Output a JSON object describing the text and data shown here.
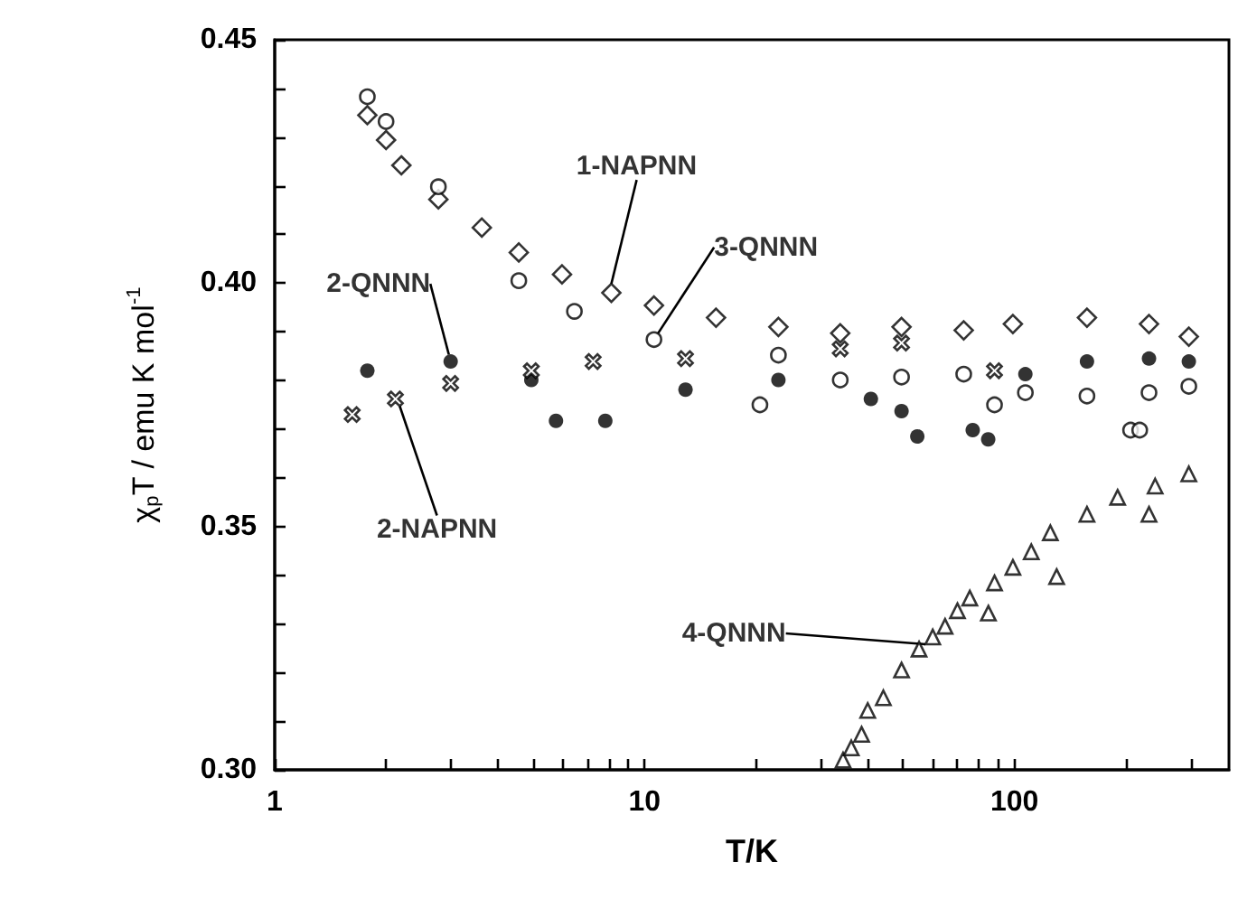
{
  "chart_data": {
    "type": "scatter",
    "xlabel": "T/K",
    "ylabel": "χ$_{p}$T / emu K mol$^{-1}$",
    "log": "x",
    "grid": false,
    "xlim": [
      1,
      380
    ],
    "ylim": [
      0.3,
      0.45
    ],
    "xticks": [
      1,
      {
        "value": 2,
        "label": null
      },
      {
        "value": 3,
        "label": null
      },
      {
        "value": 4,
        "label": null
      },
      {
        "value": 5,
        "label": null
      },
      {
        "value": 6,
        "label": null
      },
      {
        "value": 7,
        "label": null
      },
      {
        "value": 8,
        "label": null
      },
      {
        "value": 9,
        "label": null
      },
      10,
      {
        "value": 20,
        "label": null
      },
      {
        "value": 30,
        "label": null
      },
      {
        "value": 40,
        "label": null
      },
      {
        "value": 50,
        "label": null
      },
      {
        "value": 60,
        "label": null
      },
      {
        "value": 70,
        "label": null
      },
      {
        "value": 80,
        "label": null
      },
      {
        "value": 90,
        "label": null
      },
      100,
      {
        "value": 200,
        "label": null
      },
      {
        "value": 300,
        "label": null
      }
    ],
    "yticks": [
      {
        "value": 0.3,
        "label": "0.30"
      },
      {
        "value": 0.31,
        "label": null
      },
      {
        "value": 0.32,
        "label": null
      },
      {
        "value": 0.33,
        "label": null
      },
      {
        "value": 0.34,
        "label": null
      },
      0.35,
      {
        "value": 0.36,
        "label": null
      },
      {
        "value": 0.37,
        "label": null
      },
      {
        "value": 0.38,
        "label": null
      },
      {
        "value": 0.39,
        "label": null
      },
      {
        "value": 0.4,
        "label": "0.40"
      },
      {
        "value": 0.41,
        "label": null
      },
      {
        "value": 0.42,
        "label": null
      },
      {
        "value": 0.43,
        "label": null
      },
      {
        "value": 0.44,
        "label": null
      },
      0.45
    ],
    "series": [
      {
        "name": "1-NAPNN",
        "color": "#000000",
        "marker": "diamond",
        "x": [
          1.78,
          2.0,
          2.2,
          2.77,
          3.63,
          4.57,
          5.98,
          8.13,
          10.6,
          15.6,
          23.0,
          33.8,
          49.5,
          72.9,
          99,
          157,
          231,
          296
        ],
        "values": [
          0.4345,
          0.4294,
          0.4242,
          0.4172,
          0.4114,
          0.4063,
          0.4018,
          0.398,
          0.3954,
          0.3929,
          0.391,
          0.3897,
          0.391,
          0.3903,
          0.3916,
          0.3929,
          0.3916,
          0.389
        ]
      },
      {
        "name": "3-QNNN",
        "color": "#000000",
        "marker": "circle",
        "x": [
          1.78,
          2.0,
          2.77,
          4.57,
          6.46,
          10.6,
          20.5,
          23.0,
          33.8,
          49.5,
          72.9,
          88.3,
          107,
          157,
          206,
          218,
          231,
          296
        ],
        "values": [
          0.4383,
          0.4332,
          0.4198,
          0.4005,
          0.3942,
          0.3884,
          0.375,
          0.3852,
          0.3801,
          0.3807,
          0.3813,
          0.375,
          0.3775,
          0.3768,
          0.3698,
          0.3698,
          0.3775,
          0.3788
        ]
      },
      {
        "name": "2-QNNN",
        "color": "#000000",
        "marker": "circle",
        "x": [
          1.78,
          2.99,
          4.94,
          5.76,
          7.83,
          12.9,
          23.0,
          40.9,
          49.5,
          54.6,
          77.1,
          84.9,
          107,
          157,
          231,
          296
        ],
        "values": [
          0.382,
          0.3839,
          0.3801,
          0.3717,
          0.3717,
          0.3781,
          0.3801,
          0.3762,
          0.3737,
          0.3685,
          0.3698,
          0.3679,
          0.3813,
          0.3839,
          0.3845,
          0.3839
        ]
      },
      {
        "name": "2-NAPNN",
        "color": "#000000",
        "marker": "cross",
        "x": [
          1.62,
          2.12,
          2.99,
          4.94,
          7.26,
          12.9,
          33.8,
          49.5,
          88.3
        ],
        "values": [
          0.373,
          0.3762,
          0.3794,
          0.382,
          0.3839,
          0.3845,
          0.3865,
          0.3877,
          0.382
        ]
      },
      {
        "name": "4-QNNN",
        "color": "#000000",
        "marker": "triangle",
        "x": [
          34.4,
          36.2,
          38.6,
          40.1,
          44.2,
          49.5,
          55.2,
          60.1,
          64.9,
          70.1,
          75.7,
          85,
          88.3,
          99,
          111,
          125,
          130,
          157,
          190,
          231,
          240,
          296
        ],
        "values": [
          0.302,
          0.3045,
          0.3073,
          0.3122,
          0.3148,
          0.3205,
          0.3248,
          0.3273,
          0.3295,
          0.3327,
          0.3353,
          0.3322,
          0.3384,
          0.3416,
          0.3448,
          0.3487,
          0.3397,
          0.3525,
          0.356,
          0.3525,
          0.3583,
          0.3608
        ]
      }
    ]
  }
}
